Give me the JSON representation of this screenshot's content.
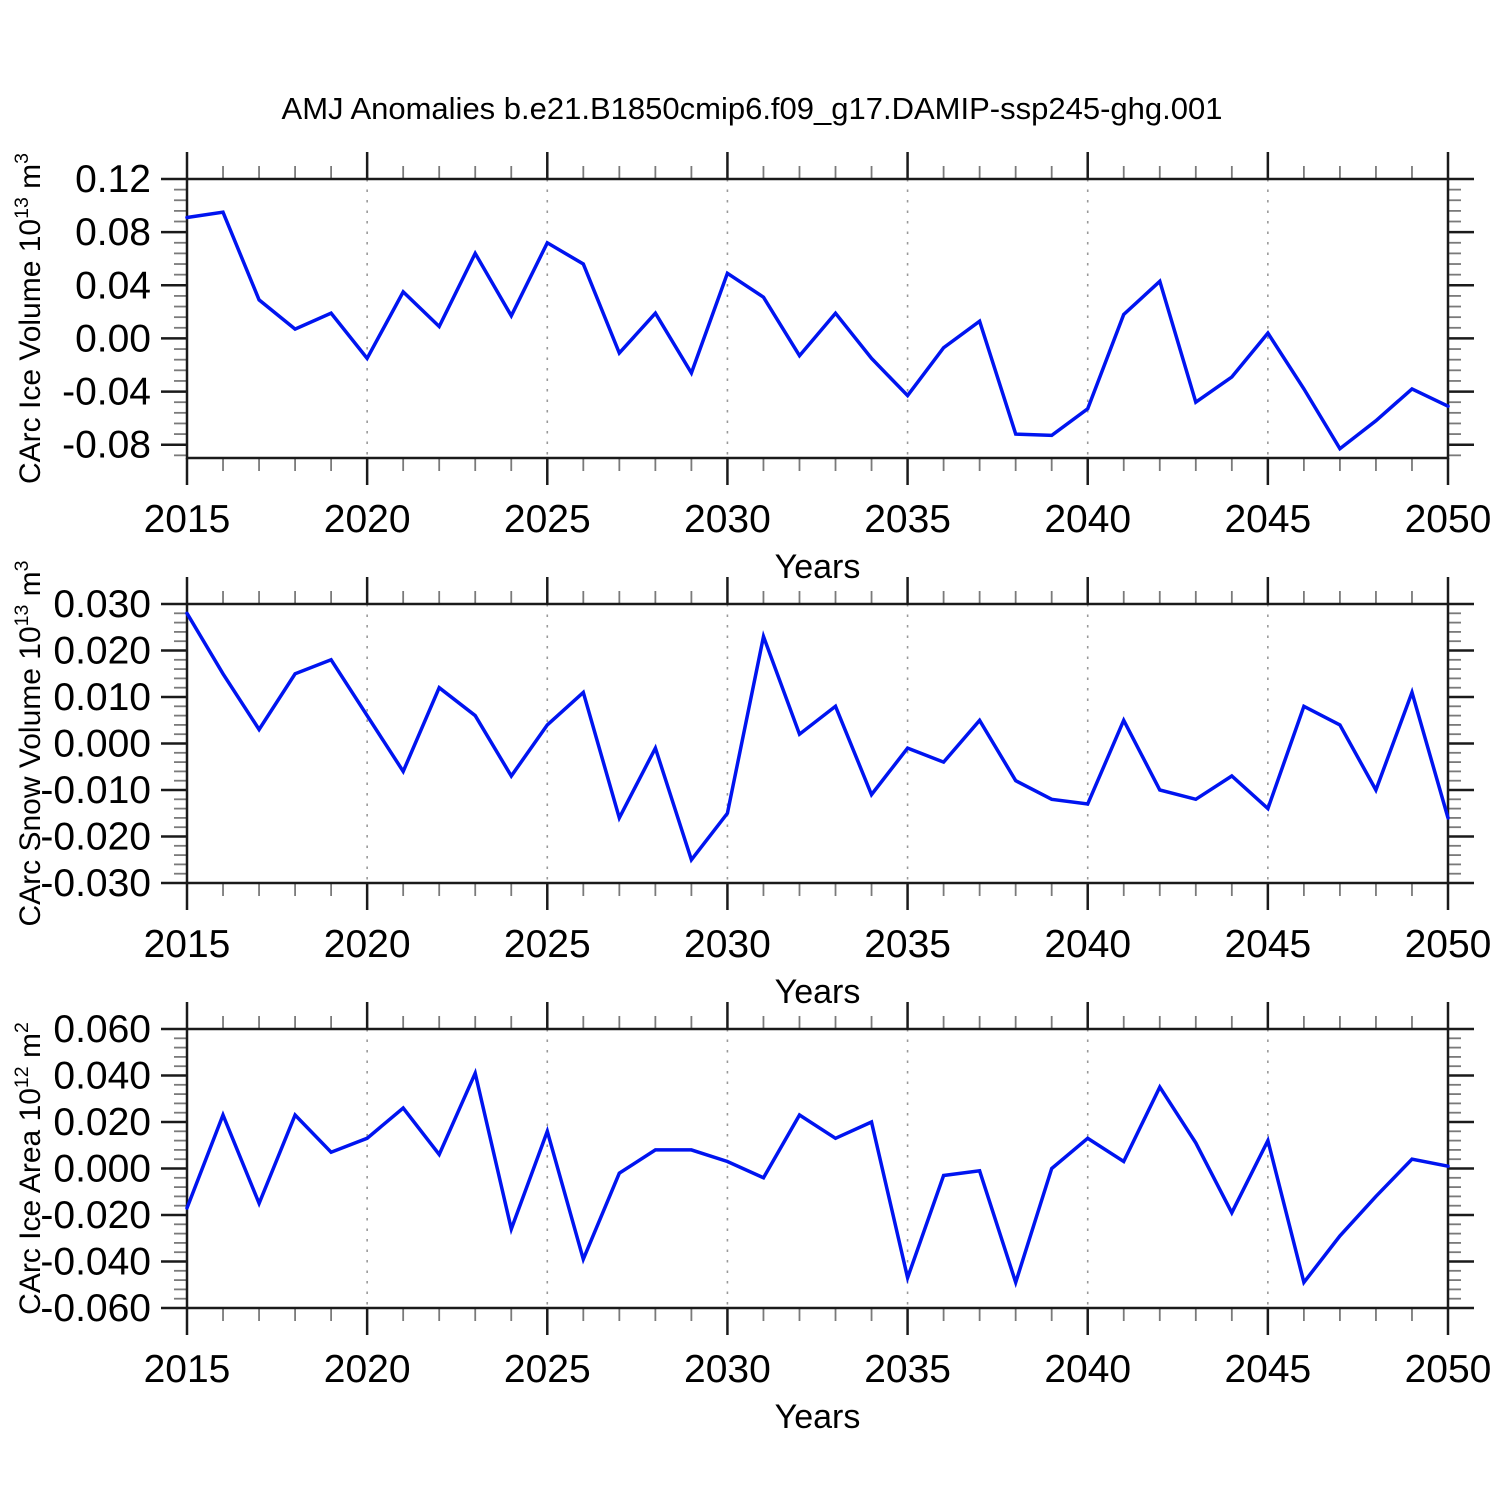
{
  "title": "AMJ Anomalies b.e21.B1850cmip6.f09_g17.DAMIP-ssp245-ghg.001",
  "colors": {
    "line": "#0014f0",
    "axis": "#1a1a1a",
    "minor_tick": "#7a7a7a",
    "grid": "#999999",
    "background": "#ffffff"
  },
  "x_axis": {
    "label": "Years",
    "range": [
      2015,
      2050
    ],
    "major_tick_labels": [
      "2015",
      "2020",
      "2025",
      "2030",
      "2035",
      "2040",
      "2045",
      "2050"
    ],
    "minor_step_years": 1,
    "grid_years": [
      2020,
      2025,
      2030,
      2035,
      2040,
      2045
    ]
  },
  "chart_data": [
    {
      "type": "line",
      "name": "carc-ice-volume",
      "ylabel": "CArc Ice Volume 10¹³ m³",
      "ylim": [
        -0.09,
        0.12
      ],
      "ytick_labels": [
        "0.12",
        "0.08",
        "0.04",
        "0.00",
        "-0.04",
        "-0.08"
      ],
      "y_minor_step": 0.008,
      "x": [
        2015,
        2016,
        2017,
        2018,
        2019,
        2020,
        2021,
        2022,
        2023,
        2024,
        2025,
        2026,
        2027,
        2028,
        2029,
        2030,
        2031,
        2032,
        2033,
        2034,
        2035,
        2036,
        2037,
        2038,
        2039,
        2040,
        2041,
        2042,
        2043,
        2044,
        2045,
        2046,
        2047,
        2048,
        2049,
        2050
      ],
      "values": [
        0.091,
        0.095,
        0.029,
        0.007,
        0.019,
        -0.015,
        0.035,
        0.009,
        0.064,
        0.017,
        0.072,
        0.056,
        -0.011,
        0.019,
        -0.026,
        0.049,
        0.031,
        -0.013,
        0.019,
        -0.015,
        -0.043,
        -0.007,
        0.013,
        -0.072,
        -0.073,
        -0.053,
        0.018,
        0.043,
        -0.048,
        -0.029,
        0.004,
        -0.038,
        -0.083,
        -0.062,
        -0.038,
        -0.051
      ]
    },
    {
      "type": "line",
      "name": "carc-snow-volume",
      "ylabel": "CArc Snow Volume 10¹³ m³",
      "ylim": [
        -0.03,
        0.03
      ],
      "ytick_labels": [
        "0.030",
        "0.020",
        "0.010",
        "0.000",
        "-0.010",
        "-0.020",
        "-0.030"
      ],
      "y_minor_step": 0.002,
      "x": [
        2015,
        2016,
        2017,
        2018,
        2019,
        2020,
        2021,
        2022,
        2023,
        2024,
        2025,
        2026,
        2027,
        2028,
        2029,
        2030,
        2031,
        2032,
        2033,
        2034,
        2035,
        2036,
        2037,
        2038,
        2039,
        2040,
        2041,
        2042,
        2043,
        2044,
        2045,
        2046,
        2047,
        2048,
        2049,
        2050
      ],
      "values": [
        0.028,
        0.015,
        0.003,
        0.015,
        0.018,
        0.006,
        -0.006,
        0.012,
        0.006,
        -0.007,
        0.004,
        0.011,
        -0.016,
        -0.001,
        -0.025,
        -0.015,
        0.023,
        0.002,
        0.008,
        -0.011,
        -0.001,
        -0.004,
        0.005,
        -0.008,
        -0.012,
        -0.013,
        0.005,
        -0.01,
        -0.012,
        -0.007,
        -0.014,
        0.008,
        0.004,
        -0.01,
        0.011,
        -0.016
      ]
    },
    {
      "type": "line",
      "name": "carc-ice-area",
      "ylabel": "CArc Ice Area 10¹² m²",
      "ylim": [
        -0.06,
        0.06
      ],
      "ytick_labels": [
        "0.060",
        "0.040",
        "0.020",
        "0.000",
        "-0.020",
        "-0.040",
        "-0.060"
      ],
      "y_minor_step": 0.004,
      "x": [
        2015,
        2016,
        2017,
        2018,
        2019,
        2020,
        2021,
        2022,
        2023,
        2024,
        2025,
        2026,
        2027,
        2028,
        2029,
        2030,
        2031,
        2032,
        2033,
        2034,
        2035,
        2036,
        2037,
        2038,
        2039,
        2040,
        2041,
        2042,
        2043,
        2044,
        2045,
        2046,
        2047,
        2048,
        2049,
        2050
      ],
      "values": [
        -0.017,
        0.023,
        -0.015,
        0.023,
        0.007,
        0.013,
        0.026,
        0.006,
        0.041,
        -0.026,
        0.016,
        -0.039,
        -0.002,
        0.008,
        0.008,
        0.003,
        -0.004,
        0.023,
        0.013,
        0.02,
        -0.047,
        -0.003,
        -0.001,
        -0.049,
        0.0,
        0.013,
        0.003,
        0.035,
        0.011,
        -0.019,
        0.012,
        -0.049,
        -0.029,
        -0.012,
        0.004,
        0.001
      ]
    }
  ]
}
